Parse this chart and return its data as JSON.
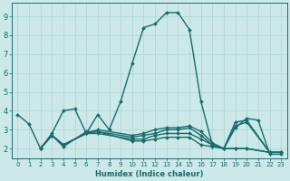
{
  "title": "",
  "xlabel": "Humidex (Indice chaleur)",
  "ylabel": "",
  "bg_color": "#cce8e8",
  "grid_color": "#b0d8d8",
  "line_color": "#1a6b6b",
  "xlim": [
    -0.5,
    23.5
  ],
  "ylim": [
    1.5,
    9.7
  ],
  "xticks": [
    0,
    1,
    2,
    3,
    4,
    5,
    6,
    7,
    8,
    9,
    10,
    11,
    12,
    13,
    14,
    15,
    16,
    17,
    18,
    19,
    20,
    21,
    22,
    23
  ],
  "yticks": [
    2,
    3,
    4,
    5,
    6,
    7,
    8,
    9
  ],
  "series": [
    {
      "x": [
        0,
        1,
        2,
        3,
        4,
        5,
        6,
        7,
        8,
        9,
        10,
        11,
        12,
        13,
        14,
        15,
        16,
        17,
        18,
        19,
        20,
        21,
        22,
        23
      ],
      "y": [
        3.8,
        3.3,
        2.0,
        2.8,
        4.0,
        4.1,
        2.8,
        3.8,
        3.0,
        4.5,
        6.5,
        8.4,
        8.6,
        9.2,
        9.2,
        8.3,
        4.5,
        2.2,
        2.0,
        3.1,
        3.6,
        3.5,
        1.7,
        1.7
      ]
    },
    {
      "x": [
        2,
        3,
        4,
        6,
        7,
        10,
        11,
        12,
        13,
        14,
        15,
        16,
        17,
        18,
        19,
        20,
        22,
        23
      ],
      "y": [
        2.0,
        2.7,
        2.1,
        2.9,
        2.9,
        2.4,
        2.4,
        2.5,
        2.6,
        2.6,
        2.6,
        2.2,
        2.1,
        2.0,
        2.0,
        2.0,
        1.8,
        1.8
      ]
    },
    {
      "x": [
        2,
        3,
        4,
        6,
        7,
        10,
        11,
        12,
        13,
        14,
        15,
        16,
        17,
        18,
        19,
        20,
        22,
        23
      ],
      "y": [
        2.0,
        2.7,
        2.2,
        2.8,
        2.8,
        2.5,
        2.5,
        2.7,
        2.8,
        2.8,
        2.8,
        2.5,
        2.2,
        2.0,
        3.4,
        3.5,
        1.8,
        1.8
      ]
    },
    {
      "x": [
        2,
        3,
        4,
        6,
        7,
        10,
        11,
        12,
        13,
        14,
        15,
        16,
        17,
        18,
        19,
        20,
        22,
        23
      ],
      "y": [
        2.0,
        2.7,
        2.2,
        2.8,
        2.9,
        2.6,
        2.7,
        2.8,
        3.0,
        3.0,
        3.1,
        2.7,
        2.2,
        2.0,
        3.2,
        3.4,
        1.8,
        1.8
      ]
    },
    {
      "x": [
        2,
        3,
        4,
        6,
        7,
        10,
        11,
        12,
        13,
        14,
        15,
        16,
        17,
        18,
        19,
        20,
        22,
        23
      ],
      "y": [
        2.0,
        2.7,
        2.2,
        2.8,
        3.0,
        2.7,
        2.8,
        3.0,
        3.1,
        3.1,
        3.2,
        2.9,
        2.3,
        2.0,
        2.0,
        2.0,
        1.8,
        1.8
      ]
    }
  ]
}
